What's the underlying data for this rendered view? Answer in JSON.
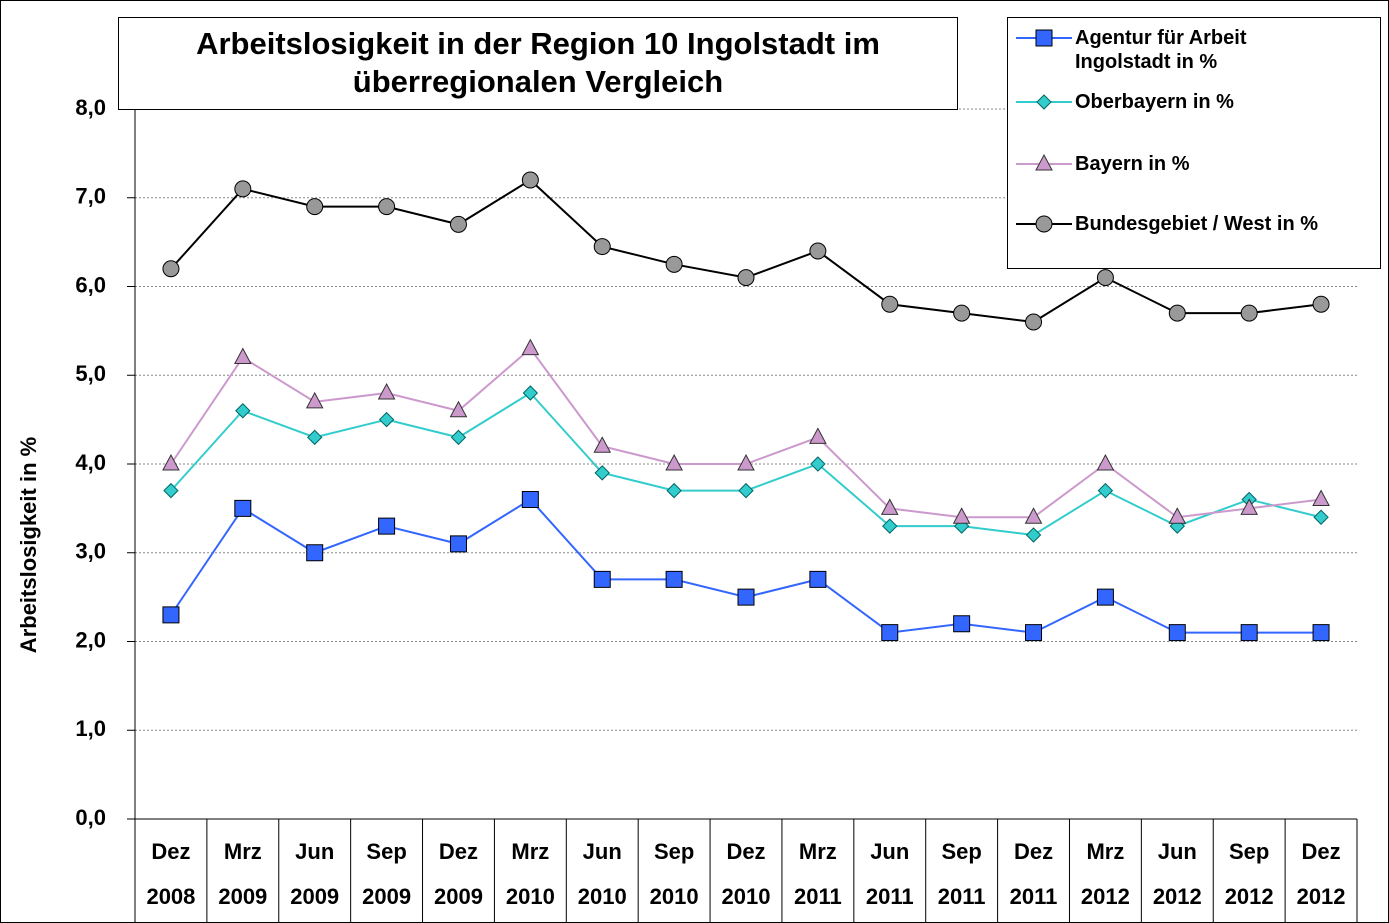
{
  "chart_data": {
    "type": "line",
    "title": "Arbeitslosigkeit in der Region 10 Ingolstadt im\nüberregionalen Vergleich",
    "y_label": "Arbeitslosigkeit in %",
    "categories": [
      [
        "Dez",
        "2008"
      ],
      [
        "Mrz",
        "2009"
      ],
      [
        "Jun",
        "2009"
      ],
      [
        "Sep",
        "2009"
      ],
      [
        "Dez",
        "2009"
      ],
      [
        "Mrz",
        "2010"
      ],
      [
        "Jun",
        "2010"
      ],
      [
        "Sep",
        "2010"
      ],
      [
        "Dez",
        "2010"
      ],
      [
        "Mrz",
        "2011"
      ],
      [
        "Jun",
        "2011"
      ],
      [
        "Sep",
        "2011"
      ],
      [
        "Dez",
        "2011"
      ],
      [
        "Mrz",
        "2012"
      ],
      [
        "Jun",
        "2012"
      ],
      [
        "Sep",
        "2012"
      ],
      [
        "Dez",
        "2012"
      ]
    ],
    "series": [
      {
        "name": "Agentur für Arbeit\nIngolstadt in %",
        "color": "#3366ff",
        "marker": "square",
        "values": [
          2.3,
          3.5,
          3.0,
          3.3,
          3.1,
          3.6,
          2.7,
          2.7,
          2.5,
          2.7,
          2.1,
          2.2,
          2.1,
          2.5,
          2.1,
          2.1,
          2.1
        ]
      },
      {
        "name": "Oberbayern in %",
        "color": "#33cccc",
        "marker": "diamond",
        "values": [
          3.7,
          4.6,
          4.3,
          4.5,
          4.3,
          4.8,
          3.9,
          3.7,
          3.7,
          4.0,
          3.3,
          3.3,
          3.2,
          3.7,
          3.3,
          3.6,
          3.4
        ]
      },
      {
        "name": "Bayern in %",
        "color": "#cc99cc",
        "marker": "triangle",
        "values": [
          4.0,
          5.2,
          4.7,
          4.8,
          4.6,
          5.3,
          4.2,
          4.0,
          4.0,
          4.3,
          3.5,
          3.4,
          3.4,
          4.0,
          3.4,
          3.5,
          3.6
        ]
      },
      {
        "name": "Bundesgebiet / West in %",
        "color": "#000000",
        "marker": "circle",
        "values": [
          6.2,
          7.1,
          6.9,
          6.9,
          6.7,
          7.2,
          6.45,
          6.25,
          6.1,
          6.4,
          5.8,
          5.7,
          5.6,
          6.1,
          5.7,
          5.7,
          5.8
        ]
      }
    ],
    "ylim": [
      0,
      8
    ],
    "yticks": [
      {
        "value": 0,
        "label": "0,0"
      },
      {
        "value": 1,
        "label": "1,0"
      },
      {
        "value": 2,
        "label": "2,0"
      },
      {
        "value": 3,
        "label": "3,0"
      },
      {
        "value": 4,
        "label": "4,0"
      },
      {
        "value": 5,
        "label": "5,0"
      },
      {
        "value": 6,
        "label": "6,0"
      },
      {
        "value": 7,
        "label": "7,0"
      },
      {
        "value": 8,
        "label": "8,0"
      }
    ],
    "grid": true,
    "legend": "top-right"
  }
}
